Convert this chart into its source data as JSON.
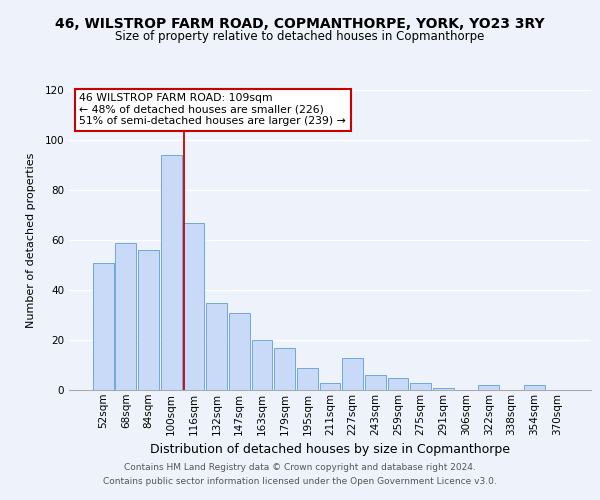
{
  "title": "46, WILSTROP FARM ROAD, COPMANTHORPE, YORK, YO23 3RY",
  "subtitle": "Size of property relative to detached houses in Copmanthorpe",
  "xlabel": "Distribution of detached houses by size in Copmanthorpe",
  "ylabel": "Number of detached properties",
  "bar_labels": [
    "52sqm",
    "68sqm",
    "84sqm",
    "100sqm",
    "116sqm",
    "132sqm",
    "147sqm",
    "163sqm",
    "179sqm",
    "195sqm",
    "211sqm",
    "227sqm",
    "243sqm",
    "259sqm",
    "275sqm",
    "291sqm",
    "306sqm",
    "322sqm",
    "338sqm",
    "354sqm",
    "370sqm"
  ],
  "bar_values": [
    51,
    59,
    56,
    94,
    67,
    35,
    31,
    20,
    17,
    9,
    3,
    13,
    6,
    5,
    3,
    1,
    0,
    2,
    0,
    2,
    0
  ],
  "bar_color": "#c9daf8",
  "bar_edge_color": "#6fa8dc",
  "ylim": [
    0,
    120
  ],
  "yticks": [
    0,
    20,
    40,
    60,
    80,
    100,
    120
  ],
  "annotation_text": "46 WILSTROP FARM ROAD: 109sqm\n← 48% of detached houses are smaller (226)\n51% of semi-detached houses are larger (239) →",
  "annotation_box_color": "#ffffff",
  "annotation_box_edge_color": "#cc0000",
  "vline_color": "#cc0000",
  "footer_line1": "Contains HM Land Registry data © Crown copyright and database right 2024.",
  "footer_line2": "Contains public sector information licensed under the Open Government Licence v3.0.",
  "bg_color": "#eef2fb",
  "plot_bg_color": "#eef2fb",
  "grid_color": "#ffffff",
  "title_fontsize": 10,
  "subtitle_fontsize": 8.5,
  "xlabel_fontsize": 9,
  "ylabel_fontsize": 8,
  "tick_fontsize": 7.5,
  "footer_fontsize": 6.5
}
